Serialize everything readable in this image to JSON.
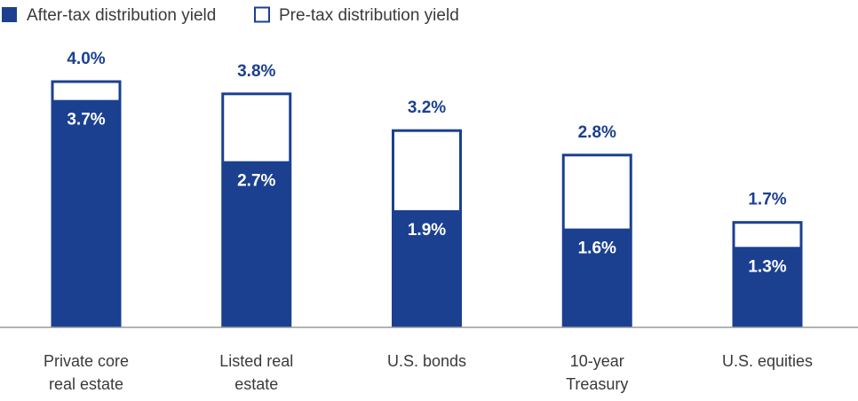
{
  "chart_data": {
    "type": "bar",
    "categories": [
      [
        "Private core",
        "real estate"
      ],
      [
        "Listed real",
        "estate"
      ],
      [
        "U.S. bonds"
      ],
      [
        "10-year",
        "Treasury"
      ],
      [
        "U.S. equities"
      ]
    ],
    "series": [
      {
        "name": "After-tax distribution yield",
        "values": [
          3.7,
          2.7,
          1.9,
          1.6,
          1.3
        ],
        "labels": [
          "3.7%",
          "2.7%",
          "1.9%",
          "1.6%",
          "1.3%"
        ]
      },
      {
        "name": "Pre-tax distribution yield",
        "values": [
          4.0,
          3.8,
          3.2,
          2.8,
          1.7
        ],
        "labels": [
          "4.0%",
          "3.8%",
          "3.2%",
          "2.8%",
          "1.7%"
        ]
      }
    ],
    "ylim": [
      0,
      4.0
    ],
    "grid": false,
    "legend_position": "top-left",
    "colors": {
      "after_tax": "#1b4090",
      "pre_tax_fill": "#ffffff",
      "outline": "#1b4090",
      "axis": "#9a9a9a",
      "text": "#3a3a3a"
    }
  }
}
